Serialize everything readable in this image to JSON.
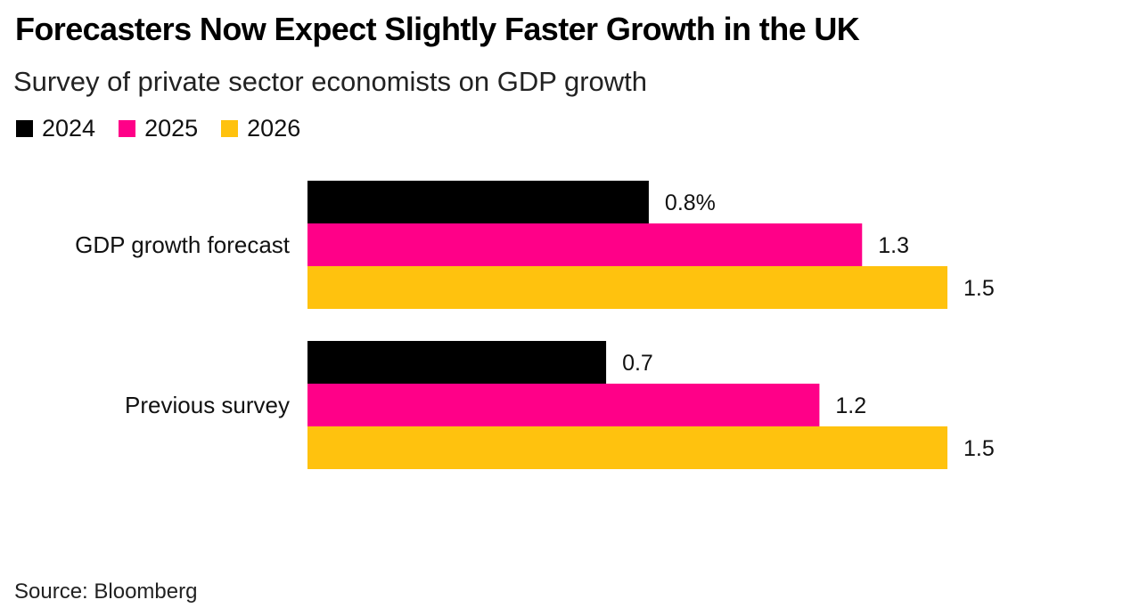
{
  "chart_data": {
    "type": "bar",
    "orientation": "horizontal",
    "title": "Forecasters Now Expect Slightly Faster Growth in the UK",
    "subtitle": "Survey of private sector economists on GDP growth",
    "categories": [
      "GDP growth forecast",
      "Previous survey"
    ],
    "series": [
      {
        "name": "2024",
        "color": "#000000",
        "values": [
          0.8,
          0.7
        ],
        "labels": [
          "0.8%",
          "0.7"
        ]
      },
      {
        "name": "2025",
        "color": "#ff0088",
        "values": [
          1.3,
          1.2
        ],
        "labels": [
          "1.3",
          "1.2"
        ]
      },
      {
        "name": "2026",
        "color": "#ffc20e",
        "values": [
          1.5,
          1.5
        ],
        "labels": [
          "1.5",
          "1.5"
        ]
      }
    ],
    "xlabel": "",
    "ylabel": "",
    "xlim": [
      0,
      1.5
    ],
    "grid": false,
    "legend_position": "top-left",
    "source": "Source: Bloomberg"
  }
}
